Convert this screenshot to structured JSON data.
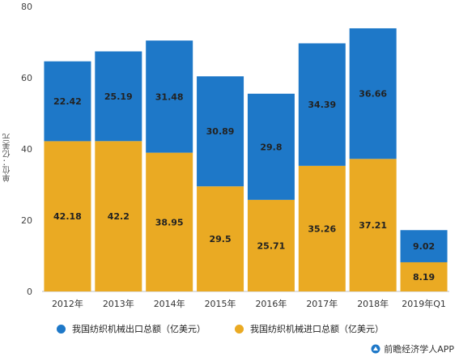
{
  "chart_data": {
    "type": "bar",
    "stacked": true,
    "categories": [
      "2012年",
      "2013年",
      "2014年",
      "2015年",
      "2016年",
      "2017年",
      "2018年",
      "2019年Q1"
    ],
    "series": [
      {
        "name": "我国纺织机械进口总额（亿美元）",
        "values": [
          42.18,
          42.2,
          38.95,
          29.5,
          25.71,
          35.26,
          37.21,
          8.19
        ],
        "color": "#eaaa23"
      },
      {
        "name": "我国纺织机械出口总额（亿美元）",
        "values": [
          22.42,
          25.19,
          31.48,
          30.89,
          29.8,
          34.39,
          36.66,
          9.02
        ],
        "color": "#1e78c8"
      }
    ],
    "ylabel": "单位：亿美元",
    "ylim": [
      0,
      80
    ],
    "yticks": [
      "0",
      "20",
      "40",
      "60",
      "80"
    ],
    "grid": false,
    "legend_position": "bottom"
  },
  "source": "前瞻经济学人APP",
  "colors": {
    "export": "#1e78c8",
    "import": "#eaaa23"
  }
}
